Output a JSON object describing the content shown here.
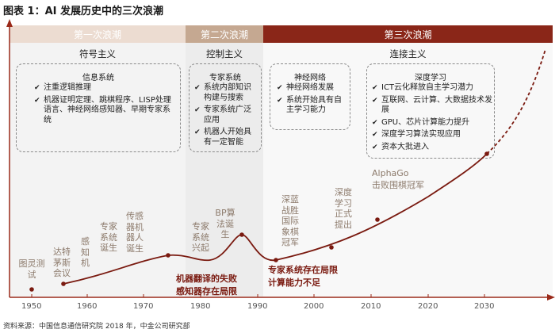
{
  "title": "图表 1：AI 发展历史中的三次浪潮",
  "eras": [
    {
      "label": "第一次浪潮"
    },
    {
      "label": "第二次浪潮"
    },
    {
      "label": "第三次浪潮"
    }
  ],
  "schools": {
    "symbolism": "符号主义",
    "control": "控制主义",
    "connection": "连接主义"
  },
  "boxes": {
    "info_systems": {
      "title": "信息系统",
      "items": [
        "注重逻辑推理",
        "机器证明定理、跳棋程序、LISP处理语言、神经网络感知器、早期专家系统"
      ]
    },
    "expert_systems": {
      "title": "专家系统",
      "items": [
        "系统内部知识构建与搜索",
        "专家系统广泛应用",
        "机器人开始具有一定智能"
      ]
    },
    "neural_networks": {
      "title": "神经网络",
      "items": [
        "神经网络发展",
        "系统开始具有自主学习能力"
      ]
    },
    "deep_learning": {
      "title": "深度学习",
      "items": [
        "ICT云化释放自主学习潜力",
        "互联网、云计算、大数据技术发展",
        "GPU、芯片计算能力提升",
        "深度学习算法实现应用",
        "资本大批进入"
      ]
    }
  },
  "events": {
    "turing_test": "图灵测试",
    "dartmouth": "达特茅斯会议",
    "perceptron": "感知机",
    "expert_born": "专家系统诞生",
    "sensor_robot": "传感器机器人诞生",
    "expert_rise": "专家系统兴起",
    "bp_algorithm": "BP算法诞生",
    "deep_blue": "深蓝战胜国际象棋冠军",
    "deep_learning_proposed": "深度学习正式提出",
    "alphago_line1": "AlphaGo",
    "alphago_line2": "击败围棋冠军"
  },
  "notes": {
    "mt_fail_line1": "机器翻译的失败",
    "mt_fail_line2": "感知器存在局限",
    "expert_limit_line1": "专家系统存在局限",
    "expert_limit_line2": "计算能力不足"
  },
  "axis": {
    "ticks": [
      "1950",
      "1960",
      "1970",
      "1980",
      "1990",
      "2000",
      "2010",
      "2020",
      "2030"
    ]
  },
  "source": "资料来源：中国信息通信研究院 2018 年，中金公司研究部",
  "colors": {
    "era1": "#ecdcd1",
    "era2": "#c5a891",
    "era3": "#8a2618",
    "curve": "#7a1a10",
    "label": "#8c7a6b"
  }
}
